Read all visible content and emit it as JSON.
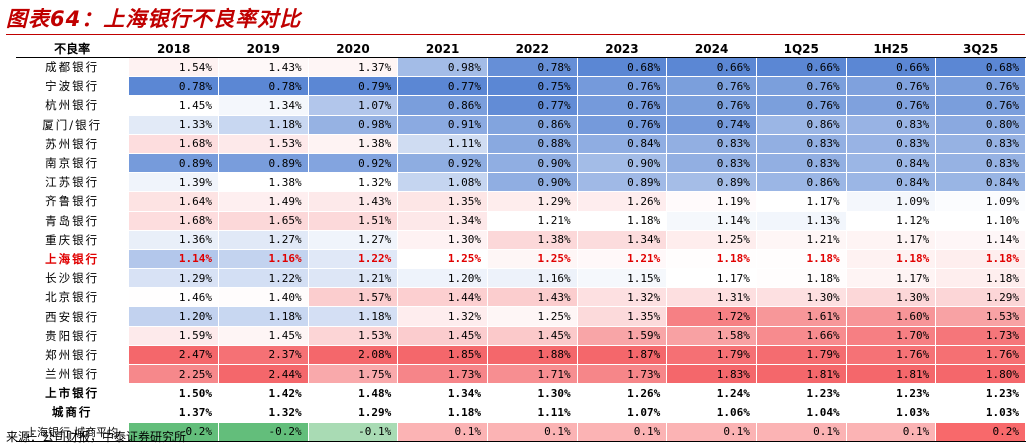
{
  "title": "图表64：上海银行不良率对比",
  "source": "来源：公司财报，中泰证券研究所",
  "table": {
    "corner_label": "不良率",
    "columns": [
      "2018",
      "2019",
      "2020",
      "2021",
      "2022",
      "2023",
      "2024",
      "1Q25",
      "1H25",
      "3Q25"
    ],
    "rows": [
      {
        "name": "成都银行",
        "type": "bank",
        "values": [
          "1.54%",
          "1.43%",
          "1.37%",
          "0.98%",
          "0.78%",
          "0.68%",
          "0.66%",
          "0.66%",
          "0.66%",
          "0.68%"
        ]
      },
      {
        "name": "宁波银行",
        "type": "bank",
        "values": [
          "0.78%",
          "0.78%",
          "0.79%",
          "0.77%",
          "0.75%",
          "0.76%",
          "0.76%",
          "0.76%",
          "0.76%",
          "0.76%"
        ]
      },
      {
        "name": "杭州银行",
        "type": "bank",
        "values": [
          "1.45%",
          "1.34%",
          "1.07%",
          "0.86%",
          "0.77%",
          "0.76%",
          "0.76%",
          "0.76%",
          "0.76%",
          "0.76%"
        ]
      },
      {
        "name": "厦门/银行",
        "type": "bank",
        "values": [
          "1.33%",
          "1.18%",
          "0.98%",
          "0.91%",
          "0.86%",
          "0.76%",
          "0.74%",
          "0.86%",
          "0.83%",
          "0.80%"
        ]
      },
      {
        "name": "苏州银行",
        "type": "bank",
        "values": [
          "1.68%",
          "1.53%",
          "1.38%",
          "1.11%",
          "0.88%",
          "0.84%",
          "0.83%",
          "0.83%",
          "0.83%",
          "0.83%"
        ]
      },
      {
        "name": "南京银行",
        "type": "bank",
        "values": [
          "0.89%",
          "0.89%",
          "0.92%",
          "0.92%",
          "0.90%",
          "0.90%",
          "0.83%",
          "0.83%",
          "0.84%",
          "0.83%"
        ]
      },
      {
        "name": "江苏银行",
        "type": "bank",
        "values": [
          "1.39%",
          "1.38%",
          "1.32%",
          "1.08%",
          "0.90%",
          "0.89%",
          "0.89%",
          "0.86%",
          "0.84%",
          "0.84%"
        ]
      },
      {
        "name": "齐鲁银行",
        "type": "bank",
        "values": [
          "1.64%",
          "1.49%",
          "1.43%",
          "1.35%",
          "1.29%",
          "1.26%",
          "1.19%",
          "1.17%",
          "1.09%",
          "1.09%"
        ]
      },
      {
        "name": "青岛银行",
        "type": "bank",
        "values": [
          "1.68%",
          "1.65%",
          "1.51%",
          "1.34%",
          "1.21%",
          "1.18%",
          "1.14%",
          "1.13%",
          "1.12%",
          "1.10%"
        ]
      },
      {
        "name": "重庆银行",
        "type": "bank",
        "values": [
          "1.36%",
          "1.27%",
          "1.27%",
          "1.30%",
          "1.38%",
          "1.34%",
          "1.25%",
          "1.21%",
          "1.17%",
          "1.14%"
        ]
      },
      {
        "name": "上海银行",
        "type": "highlight",
        "values": [
          "1.14%",
          "1.16%",
          "1.22%",
          "1.25%",
          "1.25%",
          "1.21%",
          "1.18%",
          "1.18%",
          "1.18%",
          "1.18%"
        ]
      },
      {
        "name": "长沙银行",
        "type": "bank",
        "values": [
          "1.29%",
          "1.22%",
          "1.21%",
          "1.20%",
          "1.16%",
          "1.15%",
          "1.17%",
          "1.18%",
          "1.17%",
          "1.18%"
        ]
      },
      {
        "name": "北京银行",
        "type": "bank",
        "values": [
          "1.46%",
          "1.40%",
          "1.57%",
          "1.44%",
          "1.43%",
          "1.32%",
          "1.31%",
          "1.30%",
          "1.30%",
          "1.29%"
        ]
      },
      {
        "name": "西安银行",
        "type": "bank",
        "values": [
          "1.20%",
          "1.18%",
          "1.18%",
          "1.32%",
          "1.25%",
          "1.35%",
          "1.72%",
          "1.61%",
          "1.60%",
          "1.53%"
        ]
      },
      {
        "name": "贵阳银行",
        "type": "bank",
        "values": [
          "1.59%",
          "1.45%",
          "1.53%",
          "1.45%",
          "1.45%",
          "1.59%",
          "1.58%",
          "1.66%",
          "1.70%",
          "1.73%"
        ]
      },
      {
        "name": "郑州银行",
        "type": "bank",
        "values": [
          "2.47%",
          "2.37%",
          "2.08%",
          "1.85%",
          "1.88%",
          "1.87%",
          "1.79%",
          "1.79%",
          "1.76%",
          "1.76%"
        ]
      },
      {
        "name": "兰州银行",
        "type": "bank",
        "values": [
          "2.25%",
          "2.44%",
          "1.75%",
          "1.73%",
          "1.71%",
          "1.73%",
          "1.83%",
          "1.81%",
          "1.81%",
          "1.80%"
        ]
      },
      {
        "name": "上市银行",
        "type": "aggregate",
        "values": [
          "1.50%",
          "1.42%",
          "1.48%",
          "1.34%",
          "1.30%",
          "1.26%",
          "1.24%",
          "1.23%",
          "1.23%",
          "1.23%"
        ]
      },
      {
        "name": "城商行",
        "type": "aggregate",
        "values": [
          "1.37%",
          "1.32%",
          "1.29%",
          "1.18%",
          "1.11%",
          "1.07%",
          "1.06%",
          "1.04%",
          "1.03%",
          "1.03%"
        ]
      },
      {
        "name": "上海银行-城商平均",
        "type": "diff",
        "values": [
          "-0.2%",
          "-0.2%",
          "-0.1%",
          "0.1%",
          "0.1%",
          "0.1%",
          "0.1%",
          "0.1%",
          "0.1%",
          "0.2%"
        ]
      }
    ]
  },
  "colors": {
    "title_red": "#c00000",
    "highlight_text": "#e00000",
    "low_blue": "#5b87d4",
    "mid_white": "#ffffff",
    "high_red": "#f4676b",
    "diff_green": "#63be7b",
    "diff_red": "#f8696b"
  }
}
